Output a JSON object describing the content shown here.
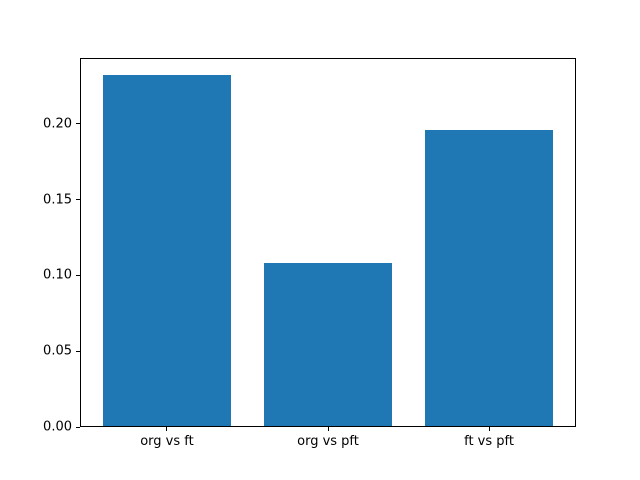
{
  "figure": {
    "background": "#ffffff",
    "axis_color": "#000000"
  },
  "chart_data": {
    "type": "bar",
    "categories": [
      "org vs ft",
      "org vs pft",
      "ft vs pft"
    ],
    "values": [
      0.232,
      0.108,
      0.196
    ],
    "bar_color": "#1f77b4",
    "bar_width": 0.8,
    "title": "",
    "xlabel": "",
    "ylabel": "",
    "xlim": [
      -0.54,
      2.54
    ],
    "ylim": [
      0,
      0.2436
    ],
    "yticks": [
      0,
      0.05,
      0.1,
      0.15,
      0.2
    ],
    "ytick_labels": [
      "0.00",
      "0.05",
      "0.10",
      "0.15",
      "0.20"
    ],
    "grid": false
  }
}
